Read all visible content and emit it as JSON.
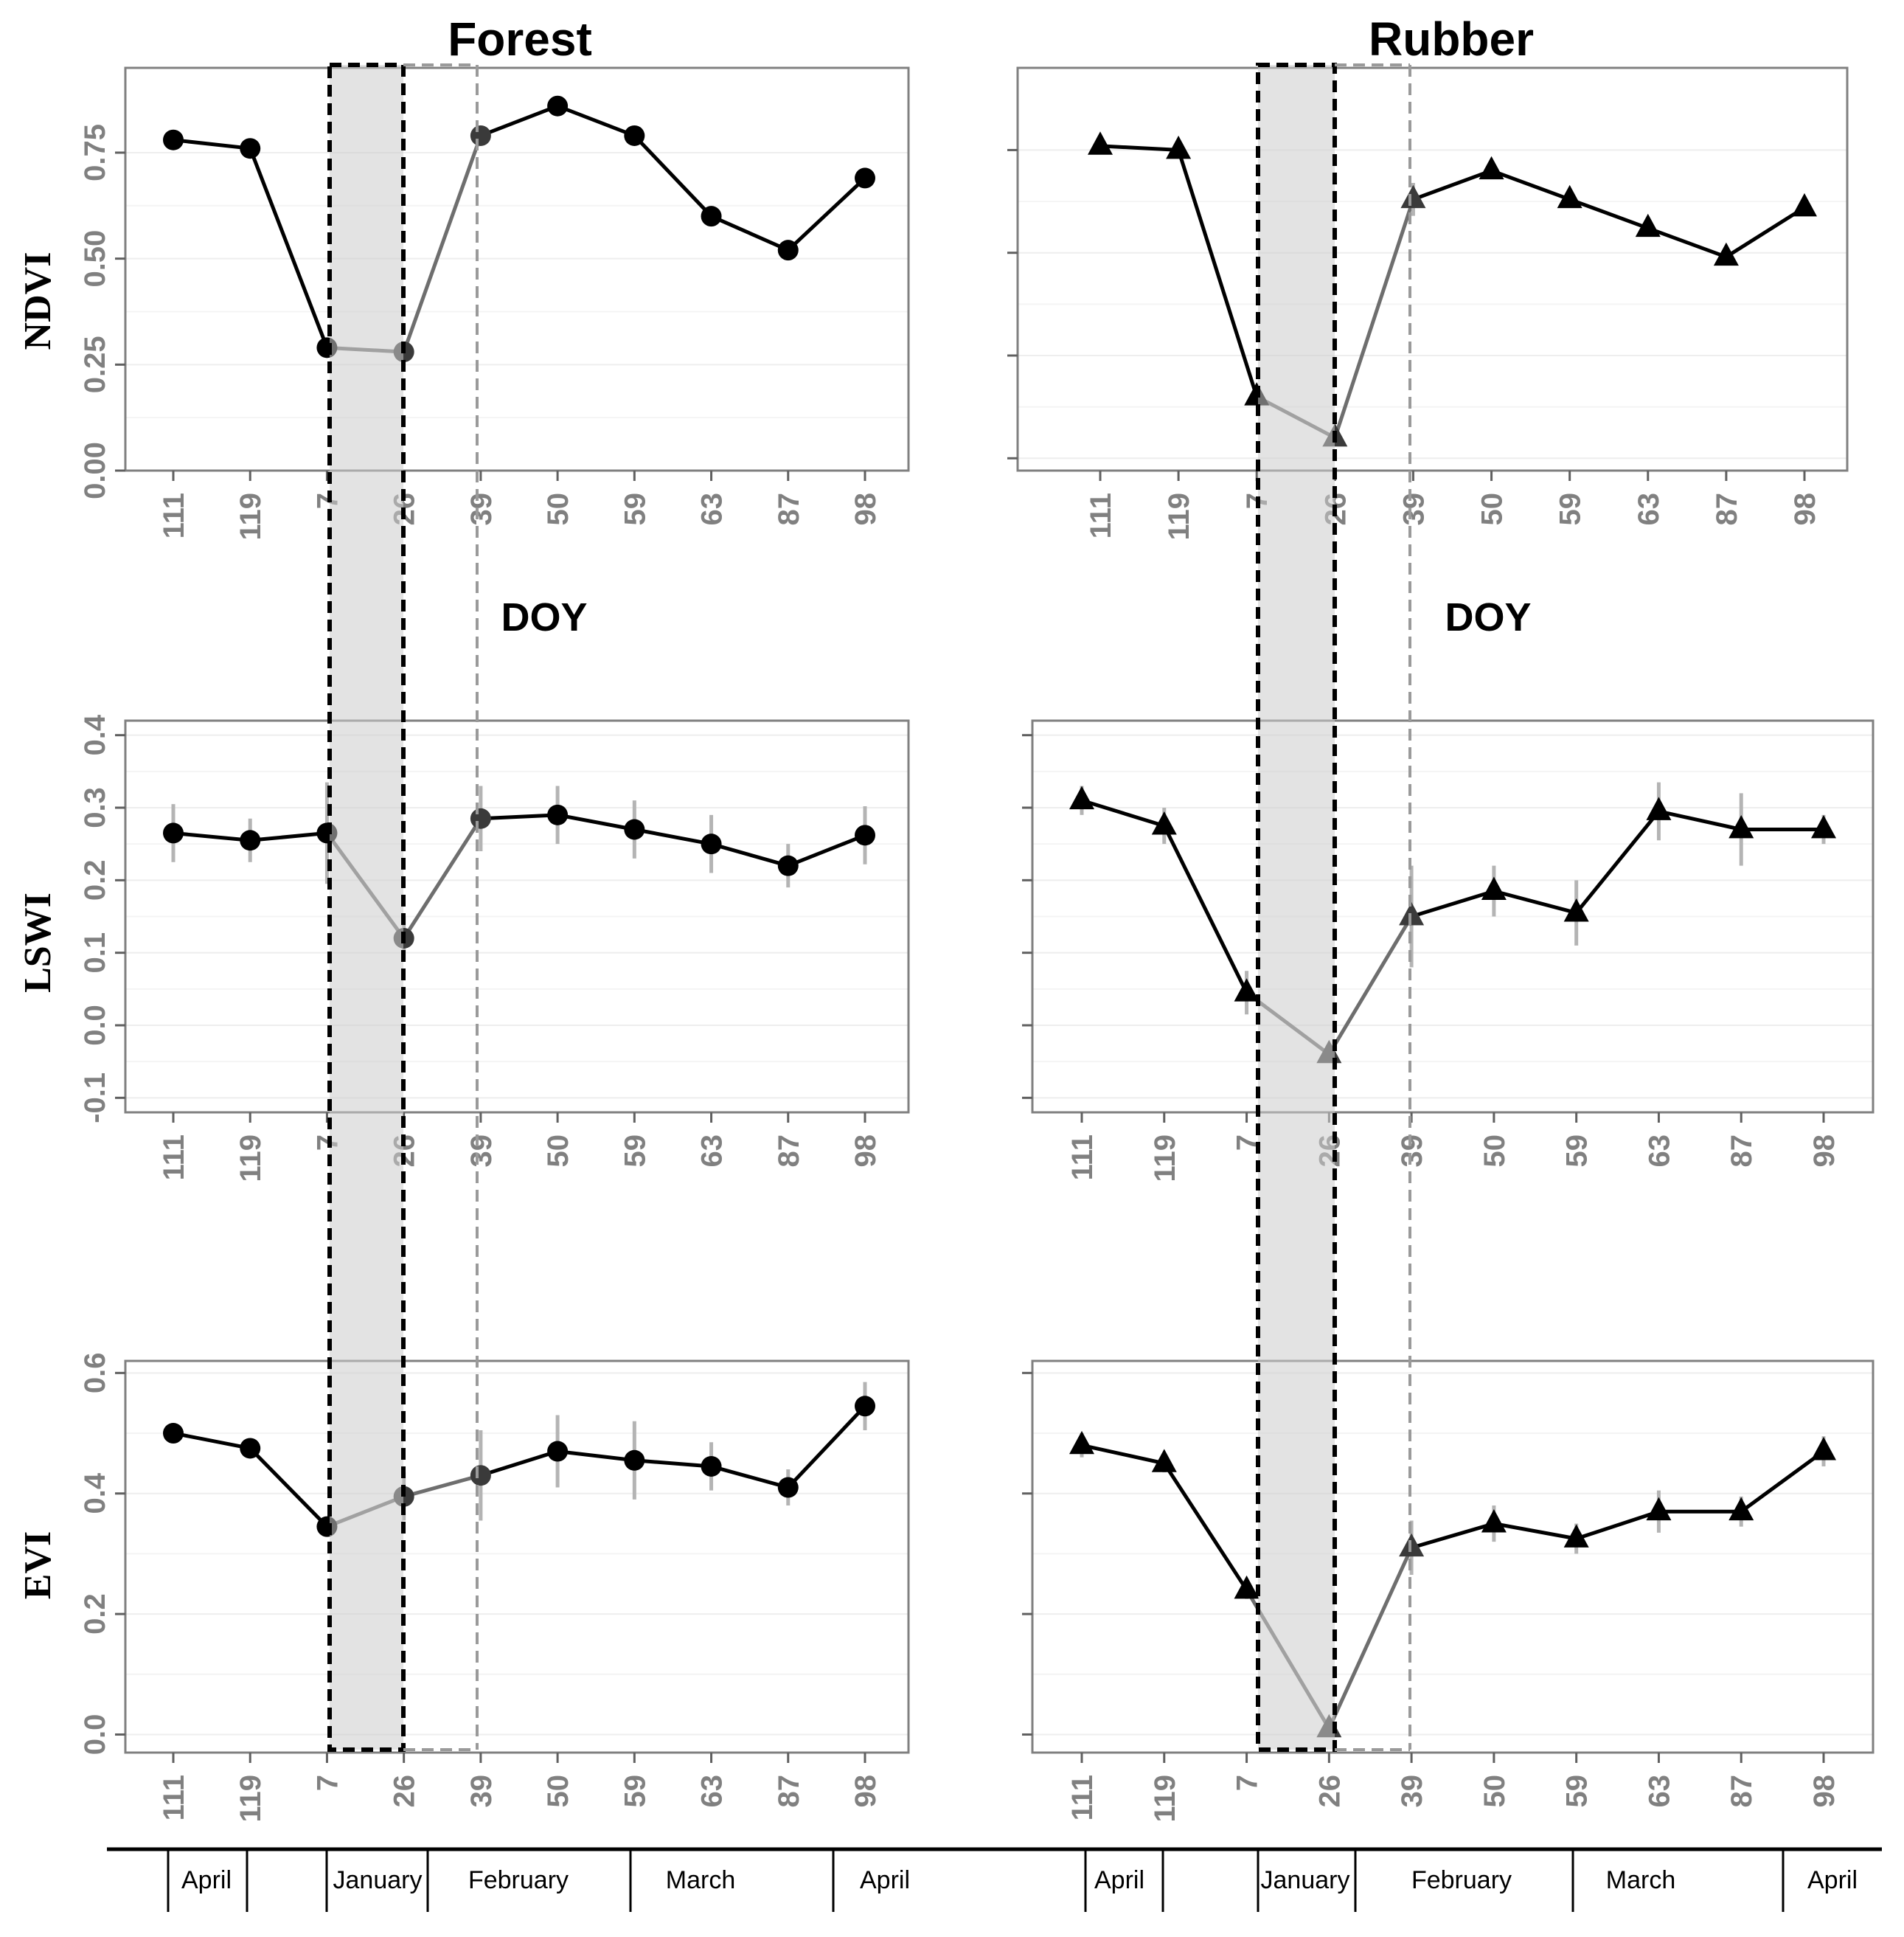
{
  "chart_data": [
    {
      "type": "line",
      "column": "Forest",
      "title": "Forest",
      "ylabel": "NDVI",
      "xlabel": "DOY",
      "marker": "circle",
      "categories": [
        "111",
        "119",
        "7",
        "26",
        "39",
        "50",
        "59",
        "63",
        "87",
        "98"
      ],
      "values": [
        0.78,
        0.76,
        0.29,
        0.28,
        0.79,
        0.86,
        0.79,
        0.6,
        0.52,
        0.69
      ],
      "errors": [
        0.01,
        0.01,
        0.01,
        0.01,
        0.01,
        0.01,
        0.01,
        0.02,
        0.01,
        0.01
      ],
      "ylim": [
        0.0,
        0.95
      ],
      "yticks": [
        0.0,
        0.25,
        0.5,
        0.75
      ],
      "ytick_labels": [
        "0.00",
        "0.25",
        "0.50",
        "0.75"
      ],
      "grid": true
    },
    {
      "type": "line",
      "column": "Rubber",
      "title": "Rubber",
      "ylabel": "",
      "xlabel": "DOY",
      "marker": "triangle",
      "categories": [
        "111",
        "119",
        "7",
        "26",
        "39",
        "50",
        "59",
        "63",
        "87",
        "98"
      ],
      "values": [
        0.76,
        0.75,
        0.15,
        0.05,
        0.63,
        0.7,
        0.63,
        0.56,
        0.49,
        0.61
      ],
      "errors": [
        0.01,
        0.01,
        0.01,
        0.01,
        0.04,
        0.01,
        0.01,
        0.02,
        0.01,
        0.01
      ],
      "ylim": [
        -0.03,
        0.95
      ],
      "yticks": [
        0.0,
        0.25,
        0.5,
        0.75
      ],
      "ytick_labels": [
        "",
        "",
        "",
        ""
      ],
      "grid": true
    },
    {
      "type": "line",
      "column": "Forest",
      "title": "",
      "ylabel": "LSWI",
      "xlabel": "",
      "marker": "circle",
      "categories": [
        "111",
        "119",
        "7",
        "26",
        "39",
        "50",
        "59",
        "63",
        "87",
        "98"
      ],
      "values": [
        0.265,
        0.255,
        0.265,
        0.12,
        0.285,
        0.29,
        0.27,
        0.25,
        0.22,
        0.262
      ],
      "errors": [
        0.04,
        0.03,
        0.07,
        0.03,
        0.045,
        0.04,
        0.04,
        0.04,
        0.03,
        0.04
      ],
      "ylim": [
        -0.12,
        0.42
      ],
      "yticks": [
        -0.1,
        0.0,
        0.1,
        0.2,
        0.3,
        0.4
      ],
      "ytick_labels": [
        "-0.1",
        "0.0",
        "0.1",
        "0.2",
        "0.3",
        "0.4"
      ],
      "grid": true
    },
    {
      "type": "line",
      "column": "Rubber",
      "title": "",
      "ylabel": "",
      "xlabel": "",
      "marker": "triangle",
      "categories": [
        "111",
        "119",
        "7",
        "26",
        "39",
        "50",
        "59",
        "63",
        "87",
        "98"
      ],
      "values": [
        0.31,
        0.275,
        0.045,
        -0.04,
        0.15,
        0.185,
        0.155,
        0.295,
        0.27,
        0.27
      ],
      "errors": [
        0.02,
        0.025,
        0.03,
        0.01,
        0.07,
        0.035,
        0.045,
        0.04,
        0.05,
        0.02
      ],
      "ylim": [
        -0.12,
        0.42
      ],
      "yticks": [
        -0.1,
        0.0,
        0.1,
        0.2,
        0.3,
        0.4
      ],
      "ytick_labels": [
        "",
        "",
        "",
        "",
        "",
        ""
      ],
      "grid": true
    },
    {
      "type": "line",
      "column": "Forest",
      "title": "",
      "ylabel": "EVI",
      "xlabel": "",
      "marker": "circle",
      "categories": [
        "111",
        "119",
        "7",
        "26",
        "39",
        "50",
        "59",
        "63",
        "87",
        "98"
      ],
      "values": [
        0.5,
        0.475,
        0.345,
        0.395,
        0.43,
        0.47,
        0.455,
        0.445,
        0.41,
        0.545
      ],
      "errors": [
        0.01,
        0.01,
        0.01,
        0.04,
        0.075,
        0.06,
        0.065,
        0.04,
        0.03,
        0.04
      ],
      "ylim": [
        -0.03,
        0.62
      ],
      "yticks": [
        0.0,
        0.2,
        0.4,
        0.6
      ],
      "ytick_labels": [
        "0.0",
        "0.2",
        "0.4",
        "0.6"
      ],
      "grid": true
    },
    {
      "type": "line",
      "column": "Rubber",
      "title": "",
      "ylabel": "",
      "xlabel": "",
      "marker": "triangle",
      "categories": [
        "111",
        "119",
        "7",
        "26",
        "39",
        "50",
        "59",
        "63",
        "87",
        "98"
      ],
      "values": [
        0.48,
        0.45,
        0.24,
        0.01,
        0.31,
        0.35,
        0.325,
        0.37,
        0.37,
        0.47
      ],
      "errors": [
        0.02,
        0.015,
        0.015,
        0.01,
        0.045,
        0.03,
        0.025,
        0.035,
        0.025,
        0.025
      ],
      "ylim": [
        -0.03,
        0.62
      ],
      "yticks": [
        0.0,
        0.2,
        0.4,
        0.6
      ],
      "ytick_labels": [
        "",
        "",
        "",
        ""
      ],
      "grid": true
    }
  ],
  "highlight": {
    "shaded_doy_range": [
      "7",
      "26"
    ],
    "dashed_marker_doy": "39"
  },
  "month_axis": {
    "forest": [
      "April",
      "January",
      "February",
      "March",
      "April"
    ],
    "rubber": [
      "April",
      "January",
      "February",
      "March",
      "April"
    ]
  },
  "colors": {
    "line_normal": "#000000",
    "line_transition": "#6e6e6e",
    "error_bar": "#b4b4b4",
    "shade": "#cccccc",
    "dashed_marker": "#9a9a9a",
    "tick_label": "#808080"
  }
}
